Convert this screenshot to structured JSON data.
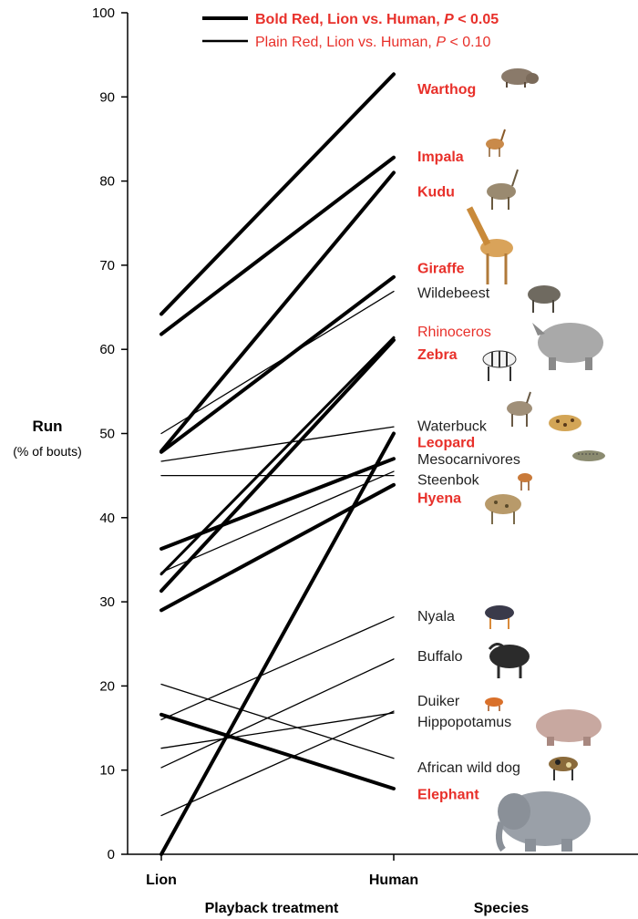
{
  "chart_data": {
    "type": "line",
    "title": "",
    "xlabel": "Playback treatment",
    "ylabel": "Run",
    "ylabel_sub": "(% of bouts)",
    "x_extra_label": "Species",
    "categories": [
      "Lion",
      "Human"
    ],
    "ylim": [
      0,
      100
    ],
    "yticks": [
      0,
      10,
      20,
      30,
      40,
      50,
      60,
      70,
      80,
      90,
      100
    ],
    "grid": false,
    "legend_position": "top",
    "legend": [
      {
        "text": "Bold Red, Lion vs. Human, ",
        "italic": "P",
        "suffix": " < 0.05",
        "style": "bold"
      },
      {
        "text": "Plain Red, Lion vs. Human, ",
        "italic": "P",
        "suffix": " < 0.10",
        "style": "plain"
      }
    ],
    "series": [
      {
        "name": "Warthog",
        "values": [
          64.2,
          92.7
        ],
        "significance": "bold",
        "label_value": 91.0
      },
      {
        "name": "Impala",
        "values": [
          61.8,
          82.8
        ],
        "significance": "bold",
        "label_value": 83.0
      },
      {
        "name": "Kudu",
        "values": [
          47.9,
          81.0
        ],
        "significance": "bold",
        "label_value": 78.8
      },
      {
        "name": "Giraffe",
        "values": [
          47.8,
          68.6
        ],
        "significance": "bold",
        "label_value": 69.7
      },
      {
        "name": "Wildebeest",
        "values": [
          50.0,
          66.9
        ],
        "significance": "none",
        "label_value": 66.8
      },
      {
        "name": "Rhinoceros",
        "values": [
          33.3,
          61.4
        ],
        "significance": "plain",
        "label_value": 62.2
      },
      {
        "name": "Zebra",
        "values": [
          31.3,
          61.1
        ],
        "significance": "bold",
        "label_value": 59.5
      },
      {
        "name": "Waterbuck",
        "values": [
          46.7,
          50.8
        ],
        "significance": "none",
        "label_value": 51.0
      },
      {
        "name": "Leopard",
        "values": [
          36.3,
          47.0
        ],
        "significance": "bold",
        "label_value": 49.0
      },
      {
        "name": "Mesocarnivores",
        "values": [
          33.5,
          45.5
        ],
        "significance": "none",
        "label_value": 47.0
      },
      {
        "name": "Steenbok",
        "values": [
          45.0,
          45.0
        ],
        "significance": "none",
        "label_value": 44.6
      },
      {
        "name": "Hyena",
        "values": [
          29.0,
          43.9
        ],
        "significance": "bold",
        "label_value": 42.4
      },
      {
        "name": "Nyala",
        "values": [
          16.0,
          28.2
        ],
        "significance": "none",
        "label_value": 28.4
      },
      {
        "name": "Buffalo",
        "values": [
          10.3,
          23.2
        ],
        "significance": "none",
        "label_value": 23.6
      },
      {
        "name": "Duiker",
        "values": [
          4.6,
          17.0
        ],
        "significance": "none",
        "label_value": 18.3
      },
      {
        "name": "Hippopotamus",
        "values": [
          12.6,
          16.8
        ],
        "significance": "none",
        "label_value": 15.8
      },
      {
        "name": "African wild dog",
        "values": [
          20.2,
          11.4
        ],
        "significance": "none",
        "label_value": 10.4
      },
      {
        "name": "Elephant",
        "values": [
          16.6,
          7.8
        ],
        "significance": "bold",
        "label_value": 7.2
      },
      {
        "name": "",
        "values": [
          0.0,
          50.0
        ],
        "significance": "bold"
      }
    ],
    "colors": {
      "significant": "#e8302a",
      "neutral": "#222222",
      "line": "#000000"
    },
    "icons": [
      "warthog-icon",
      "impala-icon",
      "kudu-icon",
      "giraffe-icon",
      "wildebeest-icon",
      "rhinoceros-icon",
      "zebra-icon",
      "waterbuck-icon",
      "leopard-icon",
      "mesocarnivore-icon",
      "steenbok-icon",
      "hyena-icon",
      "nyala-icon",
      "buffalo-icon",
      "duiker-icon",
      "hippopotamus-icon",
      "wild-dog-icon",
      "elephant-icon"
    ]
  }
}
